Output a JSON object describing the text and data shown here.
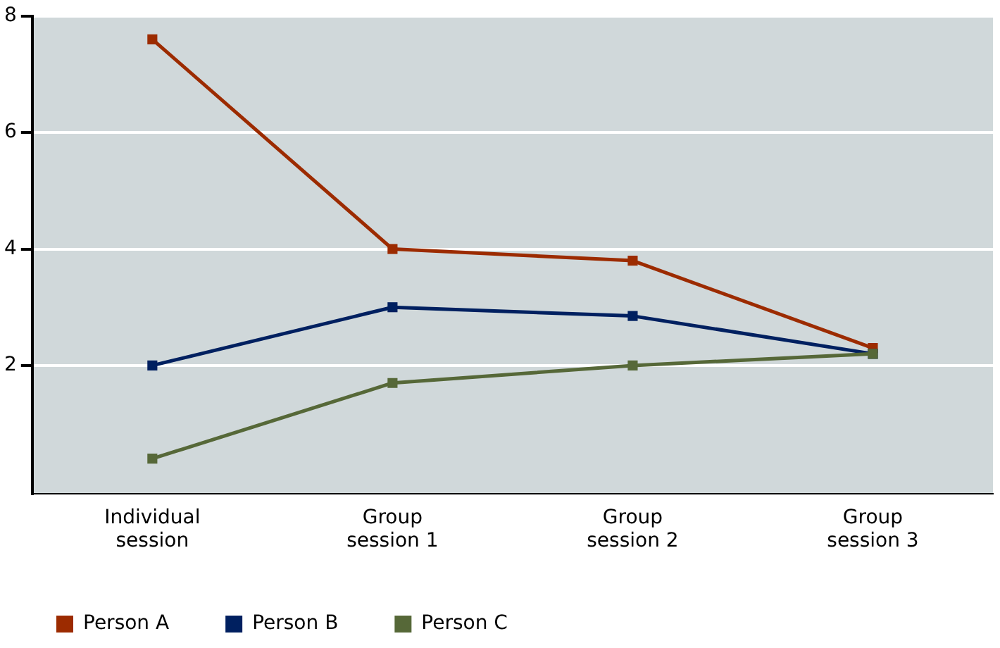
{
  "chart_data": {
    "type": "line",
    "categories": [
      "Individual session",
      "Group session 1",
      "Group session 2",
      "Group session 3"
    ],
    "series": [
      {
        "name": "Person A",
        "color": "#9c2b00",
        "values": [
          7.6,
          4.0,
          3.8,
          2.3
        ]
      },
      {
        "name": "Person B",
        "color": "#002060",
        "values": [
          2.0,
          3.0,
          2.85,
          2.2
        ]
      },
      {
        "name": "Person C",
        "color": "#566838",
        "values": [
          0.4,
          1.7,
          2.0,
          2.2
        ]
      }
    ],
    "ylim": [
      -0.2,
      8
    ],
    "yticks": [
      2,
      4,
      6,
      8
    ],
    "grid": "y",
    "legend": "bottom left",
    "marker": "square",
    "line_style": "solid"
  }
}
